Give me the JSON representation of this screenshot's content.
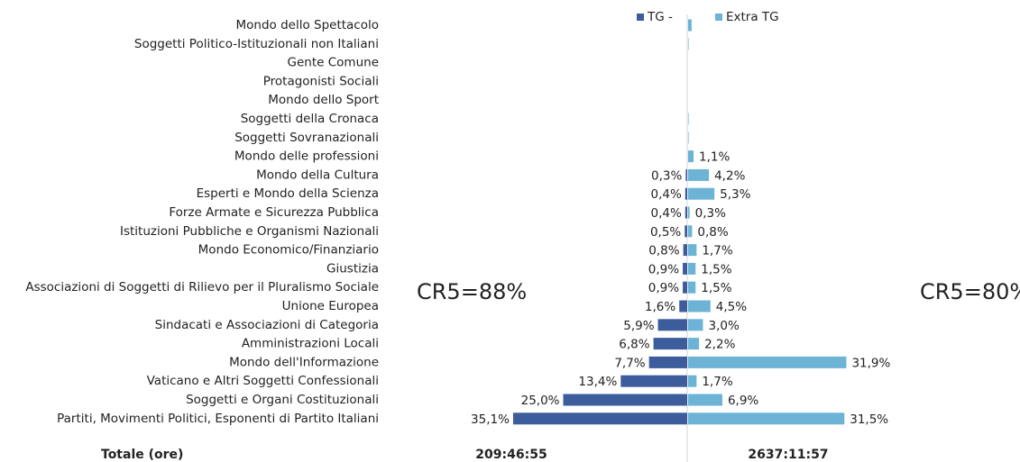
{
  "chart_data": {
    "type": "butterfly-bar",
    "categories": [
      "Mondo dello Spettacolo",
      "Soggetti Politico-Istituzionali non Italiani",
      "Gente Comune",
      "Protagonisti Sociali",
      "Mondo dello Sport",
      "Soggetti della Cronaca",
      "Soggetti Sovranazionali",
      "Mondo delle professioni",
      "Mondo della Cultura",
      "Esperti e Mondo della Scienza",
      "Forze Armate e Sicurezza Pubblica",
      "Istituzioni Pubbliche e Organismi Nazionali",
      "Mondo Economico/Finanziario",
      "Giustizia",
      "Associazioni di Soggetti di Rilievo per il Pluralismo Sociale",
      "Unione Europea",
      "Sindacati e Associazioni di Categoria",
      "Amministrazioni Locali",
      "Mondo dell'Informazione",
      "Vaticano e Altri Soggetti Confessionali",
      "Soggetti e Organi  Costituzionali",
      "Partiti, Movimenti Politici, Esponenti di Partito Italiani"
    ],
    "series": [
      {
        "name": "TG -",
        "color": "#3d5c9b",
        "values": [
          null,
          null,
          null,
          null,
          null,
          null,
          null,
          null,
          0.3,
          0.4,
          0.4,
          0.5,
          0.8,
          0.9,
          0.9,
          1.6,
          5.9,
          6.8,
          7.7,
          13.4,
          25.0,
          35.1
        ],
        "value_labels": [
          null,
          null,
          null,
          null,
          null,
          null,
          null,
          null,
          "0,3%",
          "0,4%",
          "0,4%",
          "0,5%",
          "0,8%",
          "0,9%",
          "0,9%",
          "1,6%",
          "5,9%",
          "6,8%",
          "7,7%",
          "13,4%",
          "25,0%",
          "35,1%"
        ]
      },
      {
        "name": "Extra TG",
        "color": "#6cb3d5",
        "values": [
          0.7,
          0.1,
          null,
          null,
          null,
          0.1,
          0.1,
          1.1,
          4.2,
          5.3,
          0.3,
          0.8,
          1.7,
          1.5,
          1.5,
          4.5,
          3.0,
          2.2,
          31.9,
          1.7,
          6.9,
          31.5
        ],
        "value_labels": [
          null,
          null,
          null,
          null,
          null,
          null,
          null,
          "1,1%",
          "4,2%",
          "5,3%",
          "0,3%",
          "0,8%",
          "1,7%",
          "1,5%",
          "1,5%",
          "4,5%",
          "3,0%",
          "2,2%",
          "31,9%",
          "1,7%",
          "6,9%",
          "31,5%"
        ]
      }
    ],
    "annotations": [
      "CR5=88%",
      "CR5=80%"
    ],
    "footer": {
      "label": "Totale (ore)",
      "totals": [
        "209:46:55",
        "2637:11:57"
      ]
    }
  }
}
